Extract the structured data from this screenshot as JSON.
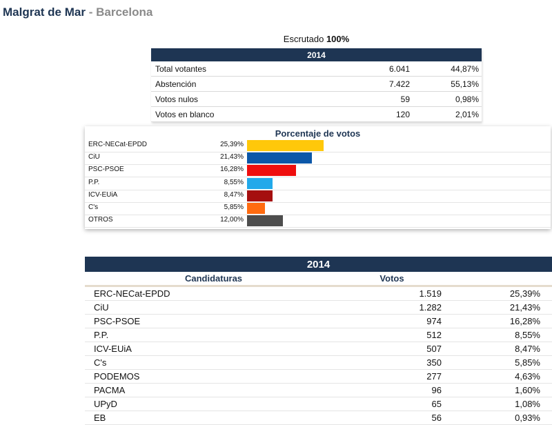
{
  "header": {
    "city": "Malgrat de Mar",
    "separator": " - ",
    "province": "Barcelona"
  },
  "scrutiny": {
    "label": "Escrutado",
    "value": "100%"
  },
  "summary": {
    "year": "2014",
    "rows": [
      {
        "label": "Total votantes",
        "count": "6.041",
        "percent": "44,87%"
      },
      {
        "label": "Abstención",
        "count": "7.422",
        "percent": "55,13%"
      },
      {
        "label": "Votos nulos",
        "count": "59",
        "percent": "0,98%"
      },
      {
        "label": "Votos en blanco",
        "count": "120",
        "percent": "2,01%"
      }
    ]
  },
  "chart_data": {
    "type": "bar",
    "orientation": "horizontal",
    "title": "Porcentaje de votos",
    "categories": [
      "ERC-NECat-EPDD",
      "CiU",
      "PSC-PSOE",
      "P.P.",
      "ICV-EUiA",
      "C's",
      "OTROS"
    ],
    "values": [
      25.39,
      21.43,
      16.28,
      8.55,
      8.47,
      5.85,
      12.0
    ],
    "value_labels": [
      "25,39%",
      "21,43%",
      "16,28%",
      "8,55%",
      "8,47%",
      "5,85%",
      "12,00%"
    ],
    "colors": [
      "#ffc80a",
      "#0b57a8",
      "#ef0e0e",
      "#22a9ea",
      "#a50f0f",
      "#ff6b10",
      "#4d4d4d"
    ]
  },
  "results": {
    "year": "2014",
    "col_candidaturas": "Candidaturas",
    "col_votos": "Votos",
    "rows": [
      {
        "name": "ERC-NECat-EPDD",
        "votes": "1.519",
        "percent": "25,39%"
      },
      {
        "name": "CiU",
        "votes": "1.282",
        "percent": "21,43%"
      },
      {
        "name": "PSC-PSOE",
        "votes": "974",
        "percent": "16,28%"
      },
      {
        "name": "P.P.",
        "votes": "512",
        "percent": "8,55%"
      },
      {
        "name": "ICV-EUiA",
        "votes": "507",
        "percent": "8,47%"
      },
      {
        "name": "C's",
        "votes": "350",
        "percent": "5,85%"
      },
      {
        "name": "PODEMOS",
        "votes": "277",
        "percent": "4,63%"
      },
      {
        "name": "PACMA",
        "votes": "96",
        "percent": "1,60%"
      },
      {
        "name": "UPyD",
        "votes": "65",
        "percent": "1,08%"
      },
      {
        "name": "EB",
        "votes": "56",
        "percent": "0,93%"
      }
    ]
  }
}
